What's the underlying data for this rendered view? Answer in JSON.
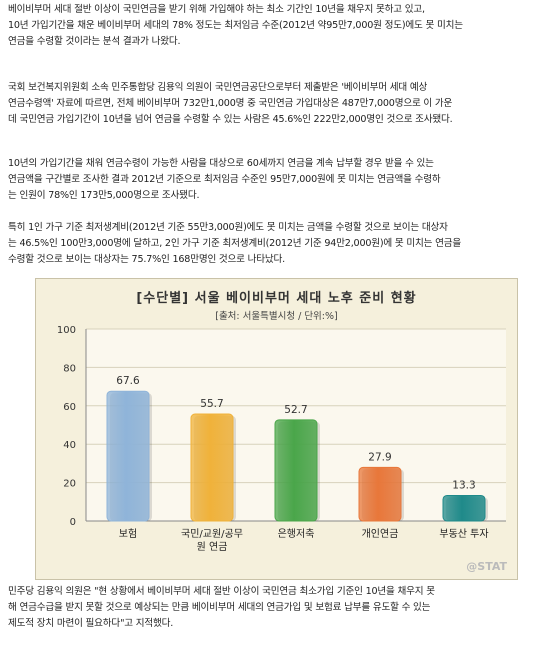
{
  "paragraphs": {
    "p1": "베이비부머 세대 절반 이상이 국민연금을 받기 위해 가입해야 하는 최소 기간인 10년을 채우지 못하고 있고,\n10년 가입기간을 채운 베이비부머 세대의 78% 정도는 최저임금 수준(2012년 약95만7,000원 정도)에도 못 미치는\n연금을 수령할 것이라는 분석 결과가 나왔다.",
    "p2": "국회 보건복지위원회 소속 민주통합당 김용익 의원이 국민연금공단으로부터 제출받은 '베이비부머 세대 예상\n연금수령액' 자료에 따르면, 전체 베이비부머 732만1,000명 중 국민연금 가입대상은 487만7,000명으로 이 가운\n데 국민연금 가입기간이 10년을 넘어 연금을 수령할 수 있는 사람은 45.6%인 222만2,000명인 것으로 조사됐다.",
    "p3": "10년의 가입기간을 채워 연금수령이 가능한 사람을 대상으로 60세까지 연금을 계속 납부할 경우 받을 수 있는\n연금액을 구간별로 조사한 결과 2012년 기준으로 최저임금 수준인 95만7,000원에 못 미치는 연금액을 수령하\n는 인원이 78%인 173만5,000명으로 조사됐다.",
    "p4": "특히 1인 가구 기준 최저생계비(2012년 기준 55만3,000원)에도 못 미치는 금액을 수령할 것으로 보이는 대상자\n는 46.5%인 100만3,000명에 달하고, 2인 가구 기준 최저생계비(2012년 기준 94만2,000원)에 못 미치는 연금을\n수령할 것으로 보이는 대상자는 75.7%인 168만명인 것으로 나타났다.",
    "p5": "민주당 김용익 의원은 \"현 상황에서 베이비부머 세대 절반 이상이 국민연금 최소가입 기준인 10년을 채우지 못\n해 연금수급을 받지 못할 것으로 예상되는 만큼 베이비부머 세대의 연금가입 및 보험료 납부를 유도할 수 있는\n제도적 장치 마련이 필요하다\"고 지적했다."
  },
  "chart": {
    "title": "[수단별] 서울 베이비부머 세대 노후 준비 현황",
    "source": "[출처: 서울특별시청 / 단위:%]",
    "watermark": "@STAT"
  },
  "chart_data": {
    "type": "bar",
    "title": "[수단별] 서울 베이비부머 세대 노후 준비 현황",
    "categories": [
      "보험",
      "국민/교원/공무원 연금",
      "은행저축",
      "개인연금",
      "부동산 투자"
    ],
    "category_lines": [
      [
        "보험"
      ],
      [
        "국민/교원/공무",
        "원 연금"
      ],
      [
        "은행저축"
      ],
      [
        "개인연금"
      ],
      [
        "부동산 투자"
      ]
    ],
    "values": [
      67.6,
      55.7,
      52.7,
      27.9,
      13.3
    ],
    "value_labels": [
      "67.6",
      "55.7",
      "52.7",
      "27.9",
      "13.3"
    ],
    "ylim": [
      0,
      100
    ],
    "yticks": [
      "0",
      "20",
      "40",
      "60",
      "80",
      "100"
    ],
    "grid": true,
    "colors": [
      "#8fb4d9",
      "#f0b23a",
      "#4aa64a",
      "#e8773a",
      "#1f8a8a"
    ]
  }
}
